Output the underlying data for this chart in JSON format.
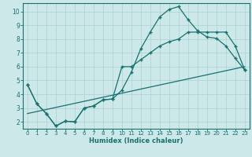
{
  "xlabel": "Humidex (Indice chaleur)",
  "bg_color": "#cce8e8",
  "grid_color": "#b0d4d4",
  "line_color": "#1a7070",
  "xlim": [
    -0.5,
    23.5
  ],
  "ylim": [
    1.5,
    10.6
  ],
  "xticks": [
    0,
    1,
    2,
    3,
    4,
    5,
    6,
    7,
    8,
    9,
    10,
    11,
    12,
    13,
    14,
    15,
    16,
    17,
    18,
    19,
    20,
    21,
    22,
    23
  ],
  "yticks": [
    2,
    3,
    4,
    5,
    6,
    7,
    8,
    9,
    10
  ],
  "curve1_x": [
    0,
    1,
    2,
    3,
    4,
    5,
    6,
    7,
    8,
    9,
    10,
    11,
    12,
    13,
    14,
    15,
    16,
    17,
    18,
    19,
    20,
    21,
    22,
    23
  ],
  "curve1_y": [
    4.7,
    3.3,
    2.6,
    1.7,
    2.05,
    2.0,
    3.0,
    3.15,
    3.6,
    3.65,
    4.3,
    5.6,
    7.3,
    8.5,
    9.6,
    10.15,
    10.35,
    9.4,
    8.6,
    8.15,
    8.05,
    7.5,
    6.6,
    5.75
  ],
  "curve2_x": [
    0,
    1,
    2,
    3,
    4,
    5,
    6,
    7,
    8,
    9,
    10,
    11,
    12,
    13,
    14,
    15,
    16,
    17,
    18,
    19,
    20,
    21,
    22,
    23
  ],
  "curve2_y": [
    4.7,
    3.3,
    2.6,
    1.7,
    2.05,
    2.0,
    3.0,
    3.15,
    3.6,
    3.65,
    6.0,
    6.0,
    6.5,
    7.0,
    7.5,
    7.8,
    8.0,
    8.5,
    8.5,
    8.5,
    8.5,
    8.5,
    7.5,
    5.75
  ],
  "curve3_x": [
    0,
    23
  ],
  "curve3_y": [
    2.6,
    6.0
  ]
}
